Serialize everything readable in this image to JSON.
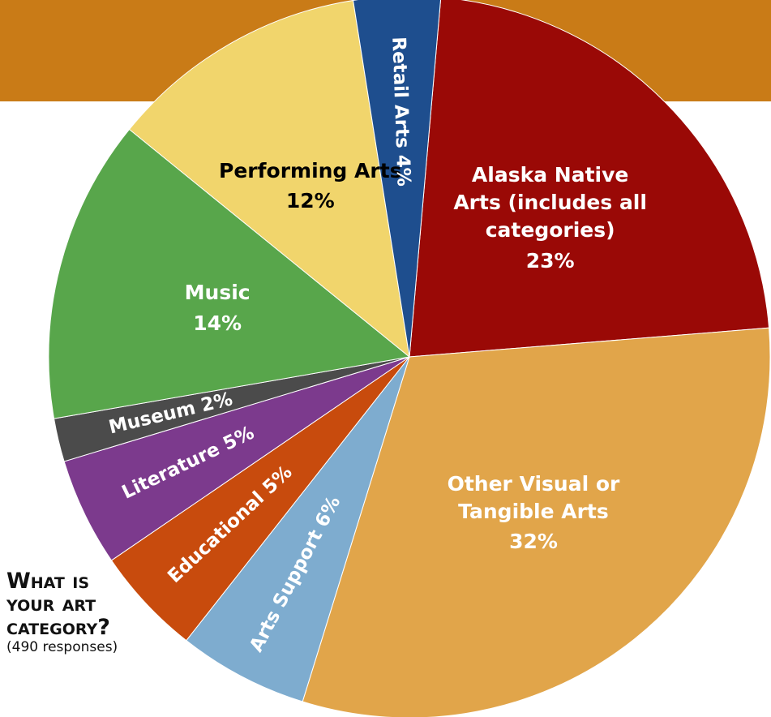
{
  "chart_data": {
    "type": "pie",
    "title": "What is your art category?",
    "subtitle": "(490 responses)",
    "categories": [
      "Alaska Native Arts (includes all categories)",
      "Other Visual or Tangible Arts",
      "Arts Support",
      "Educational",
      "Literature",
      "Museum",
      "Music",
      "Performing Arts",
      "Retail Arts"
    ],
    "values": [
      23,
      32,
      6,
      5,
      5,
      2,
      14,
      12,
      4
    ],
    "value_labels": [
      "23%",
      "32%",
      "6%",
      "5%",
      "5%",
      "2%",
      "14%",
      "12%",
      "4%"
    ],
    "colors": [
      "#9a0906",
      "#e1a54a",
      "#7eaccf",
      "#c84b0d",
      "#7c3a8d",
      "#4b4b4b",
      "#58a64b",
      "#f1d56c",
      "#1e4e8e"
    ],
    "label_colors": [
      "#ffffff",
      "#ffffff",
      "#ffffff",
      "#ffffff",
      "#ffffff",
      "#ffffff",
      "#ffffff",
      "#000000",
      "#ffffff"
    ]
  }
}
